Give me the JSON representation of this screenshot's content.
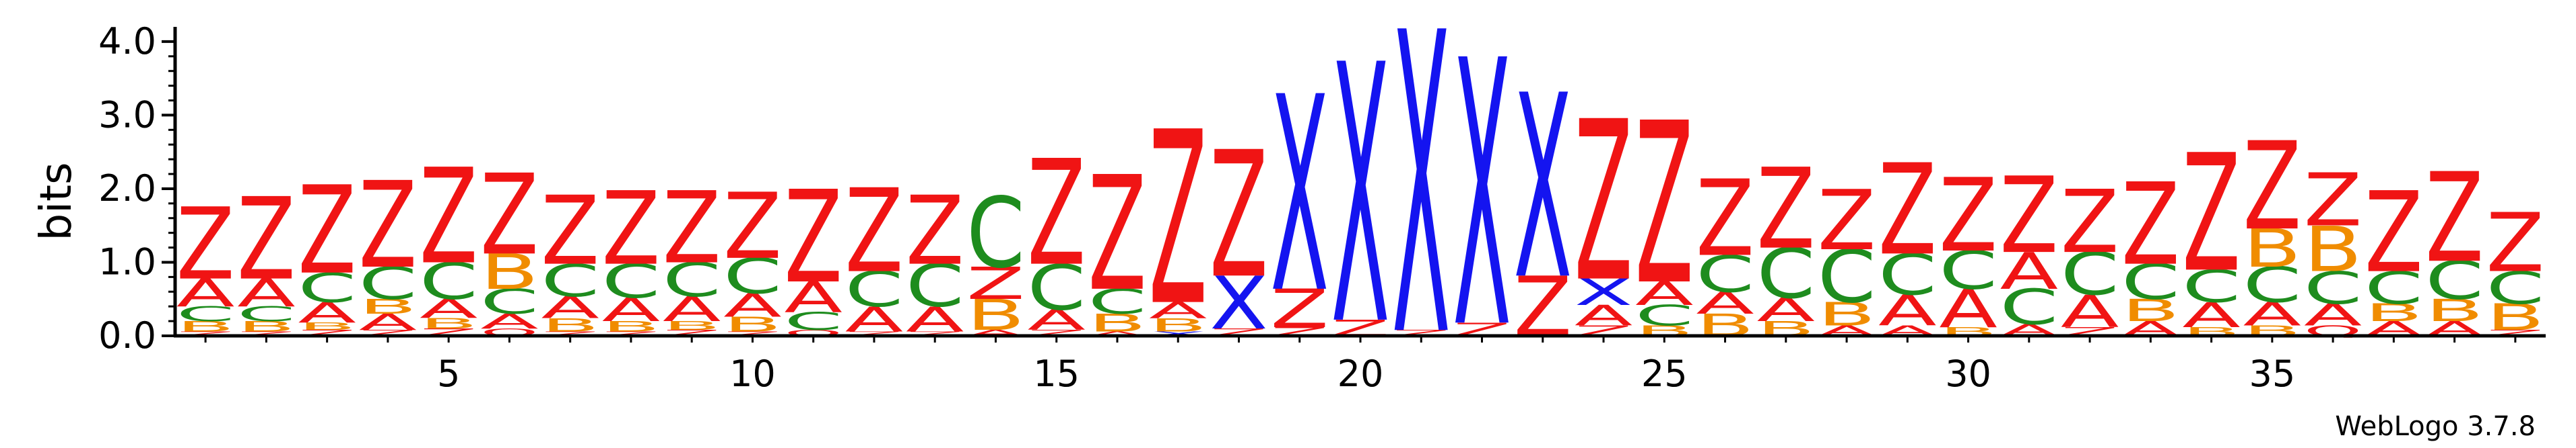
{
  "chart_data": {
    "type": "sequence-logo",
    "ylabel": "bits",
    "ylim": [
      0,
      4.2
    ],
    "yticks": [
      {
        "value": 0,
        "label": "0.0"
      },
      {
        "value": 1,
        "label": "1.0"
      },
      {
        "value": 2,
        "label": "2.0"
      },
      {
        "value": 3,
        "label": "3.0"
      },
      {
        "value": 4,
        "label": "4.0"
      }
    ],
    "xlim": [
      0.5,
      39.5
    ],
    "xticks": [
      {
        "value": 5,
        "label": "5"
      },
      {
        "value": 10,
        "label": "10"
      },
      {
        "value": 15,
        "label": "15"
      },
      {
        "value": 20,
        "label": "20"
      },
      {
        "value": 25,
        "label": "25"
      },
      {
        "value": 30,
        "label": "30"
      },
      {
        "value": 35,
        "label": "35"
      }
    ],
    "credit": "WebLogo 3.7.8",
    "colors": {
      "Z": "#f01414",
      "C": "#1e8c1e",
      "A": "#f01414",
      "B": "#f08c00",
      "X": "#1414f0",
      "Q": "#f01414"
    },
    "positions": [
      {
        "pos": 1,
        "stack": [
          [
            "Z",
            0.06
          ],
          [
            "B",
            0.14
          ],
          [
            "C",
            0.2
          ],
          [
            "A",
            0.38
          ],
          [
            "Z",
            0.98
          ]
        ]
      },
      {
        "pos": 2,
        "stack": [
          [
            "Z",
            0.06
          ],
          [
            "B",
            0.14
          ],
          [
            "C",
            0.2
          ],
          [
            "A",
            0.38
          ],
          [
            "Z",
            1.12
          ]
        ]
      },
      {
        "pos": 3,
        "stack": [
          [
            "Z",
            0.08
          ],
          [
            "B",
            0.1
          ],
          [
            "A",
            0.28
          ],
          [
            "C",
            0.4
          ],
          [
            "Z",
            1.2
          ]
        ]
      },
      {
        "pos": 4,
        "stack": [
          [
            "Z",
            0.08
          ],
          [
            "A",
            0.22
          ],
          [
            "B",
            0.2
          ],
          [
            "C",
            0.44
          ],
          [
            "Z",
            1.18
          ]
        ]
      },
      {
        "pos": 5,
        "stack": [
          [
            "Z",
            0.1
          ],
          [
            "B",
            0.14
          ],
          [
            "A",
            0.26
          ],
          [
            "C",
            0.5
          ],
          [
            "Z",
            1.3
          ]
        ]
      },
      {
        "pos": 6,
        "stack": [
          [
            "Q",
            0.1
          ],
          [
            "A",
            0.2
          ],
          [
            "C",
            0.34
          ],
          [
            "B",
            0.48
          ],
          [
            "Z",
            1.1
          ]
        ]
      },
      {
        "pos": 7,
        "stack": [
          [
            "Z",
            0.06
          ],
          [
            "B",
            0.18
          ],
          [
            "A",
            0.3
          ],
          [
            "C",
            0.44
          ],
          [
            "Z",
            0.94
          ]
        ]
      },
      {
        "pos": 8,
        "stack": [
          [
            "Z",
            0.06
          ],
          [
            "B",
            0.14
          ],
          [
            "A",
            0.32
          ],
          [
            "C",
            0.46
          ],
          [
            "Z",
            1.0
          ]
        ]
      },
      {
        "pos": 9,
        "stack": [
          [
            "Z",
            0.08
          ],
          [
            "B",
            0.12
          ],
          [
            "A",
            0.34
          ],
          [
            "C",
            0.46
          ],
          [
            "Z",
            0.98
          ]
        ]
      },
      {
        "pos": 10,
        "stack": [
          [
            "Z",
            0.06
          ],
          [
            "B",
            0.2
          ],
          [
            "A",
            0.32
          ],
          [
            "C",
            0.48
          ],
          [
            "Z",
            0.9
          ]
        ]
      },
      {
        "pos": 11,
        "stack": [
          [
            "Q",
            0.08
          ],
          [
            "C",
            0.24
          ],
          [
            "A",
            0.42
          ],
          [
            "Z",
            1.26
          ]
        ]
      },
      {
        "pos": 12,
        "stack": [
          [
            "Z",
            0.06
          ],
          [
            "A",
            0.34
          ],
          [
            "C",
            0.48
          ],
          [
            "Z",
            1.14
          ]
        ]
      },
      {
        "pos": 13,
        "stack": [
          [
            "Z",
            0.06
          ],
          [
            "A",
            0.34
          ],
          [
            "C",
            0.58
          ],
          [
            "Z",
            0.94
          ]
        ]
      },
      {
        "pos": 14,
        "stack": [
          [
            "A",
            0.08
          ],
          [
            "B",
            0.42
          ],
          [
            "Z",
            0.44
          ],
          [
            "C",
            0.96
          ]
        ]
      },
      {
        "pos": 15,
        "stack": [
          [
            "Z",
            0.08
          ],
          [
            "A",
            0.28
          ],
          [
            "C",
            0.62
          ],
          [
            "Z",
            1.44
          ]
        ]
      },
      {
        "pos": 16,
        "stack": [
          [
            "A",
            0.06
          ],
          [
            "B",
            0.24
          ],
          [
            "C",
            0.34
          ],
          [
            "Z",
            1.56
          ]
        ]
      },
      {
        "pos": 17,
        "stack": [
          [
            "X",
            0.06
          ],
          [
            "B",
            0.18
          ],
          [
            "A",
            0.22
          ],
          [
            "Z",
            2.36
          ]
        ]
      },
      {
        "pos": 18,
        "stack": [
          [
            "Z",
            0.1
          ],
          [
            "X",
            0.72
          ],
          [
            "Z",
            1.72
          ]
        ]
      },
      {
        "pos": 19,
        "stack": [
          [
            "Z",
            0.12
          ],
          [
            "Z",
            0.52
          ],
          [
            "X",
            2.66
          ]
        ]
      },
      {
        "pos": 20,
        "stack": [
          [
            "Z",
            0.22
          ],
          [
            "X",
            3.52
          ]
        ]
      },
      {
        "pos": 21,
        "stack": [
          [
            "Z",
            0.08
          ],
          [
            "X",
            4.1
          ]
        ]
      },
      {
        "pos": 22,
        "stack": [
          [
            "Z",
            0.18
          ],
          [
            "X",
            3.62
          ]
        ]
      },
      {
        "pos": 23,
        "stack": [
          [
            "Z",
            0.82
          ],
          [
            "X",
            2.5
          ]
        ]
      },
      {
        "pos": 24,
        "stack": [
          [
            "Z",
            0.14
          ],
          [
            "A",
            0.28
          ],
          [
            "X",
            0.36
          ],
          [
            "Z",
            2.18
          ]
        ]
      },
      {
        "pos": 25,
        "stack": [
          [
            "B",
            0.14
          ],
          [
            "C",
            0.28
          ],
          [
            "A",
            0.32
          ],
          [
            "Z",
            2.2
          ]
        ]
      },
      {
        "pos": 26,
        "stack": [
          [
            "B",
            0.3
          ],
          [
            "A",
            0.3
          ],
          [
            "C",
            0.5
          ],
          [
            "Z",
            1.04
          ]
        ]
      },
      {
        "pos": 27,
        "stack": [
          [
            "B",
            0.2
          ],
          [
            "A",
            0.32
          ],
          [
            "C",
            0.68
          ],
          [
            "Z",
            1.1
          ]
        ]
      },
      {
        "pos": 28,
        "stack": [
          [
            "A",
            0.14
          ],
          [
            "B",
            0.32
          ],
          [
            "C",
            0.72
          ],
          [
            "Z",
            0.82
          ]
        ]
      },
      {
        "pos": 29,
        "stack": [
          [
            "A",
            0.14
          ],
          [
            "A",
            0.42
          ],
          [
            "C",
            0.56
          ],
          [
            "Z",
            1.24
          ]
        ]
      },
      {
        "pos": 30,
        "stack": [
          [
            "B",
            0.12
          ],
          [
            "A",
            0.52
          ],
          [
            "C",
            0.52
          ],
          [
            "Z",
            1.0
          ]
        ]
      },
      {
        "pos": 31,
        "stack": [
          [
            "A",
            0.16
          ],
          [
            "C",
            0.48
          ],
          [
            "A",
            0.5
          ],
          [
            "Z",
            1.04
          ]
        ]
      },
      {
        "pos": 32,
        "stack": [
          [
            "Z",
            0.12
          ],
          [
            "A",
            0.44
          ],
          [
            "C",
            0.58
          ],
          [
            "Z",
            0.86
          ]
        ]
      },
      {
        "pos": 33,
        "stack": [
          [
            "A",
            0.2
          ],
          [
            "B",
            0.3
          ],
          [
            "C",
            0.48
          ],
          [
            "Z",
            1.12
          ]
        ]
      },
      {
        "pos": 34,
        "stack": [
          [
            "B",
            0.12
          ],
          [
            "A",
            0.34
          ],
          [
            "C",
            0.44
          ],
          [
            "Z",
            1.6
          ]
        ]
      },
      {
        "pos": 35,
        "stack": [
          [
            "B",
            0.14
          ],
          [
            "A",
            0.32
          ],
          [
            "C",
            0.48
          ],
          [
            "B",
            0.52
          ],
          [
            "Z",
            1.2
          ]
        ]
      },
      {
        "pos": 36,
        "stack": [
          [
            "Q",
            0.14
          ],
          [
            "A",
            0.3
          ],
          [
            "C",
            0.44
          ],
          [
            "B",
            0.62
          ],
          [
            "Z",
            0.72
          ]
        ]
      },
      {
        "pos": 37,
        "stack": [
          [
            "A",
            0.2
          ],
          [
            "B",
            0.24
          ],
          [
            "C",
            0.44
          ],
          [
            "Z",
            1.1
          ]
        ]
      },
      {
        "pos": 38,
        "stack": [
          [
            "A",
            0.2
          ],
          [
            "B",
            0.3
          ],
          [
            "C",
            0.52
          ],
          [
            "Z",
            1.22
          ]
        ]
      },
      {
        "pos": 39,
        "stack": [
          [
            "Z",
            0.08
          ],
          [
            "B",
            0.36
          ],
          [
            "C",
            0.44
          ],
          [
            "Z",
            0.8
          ]
        ]
      }
    ]
  }
}
